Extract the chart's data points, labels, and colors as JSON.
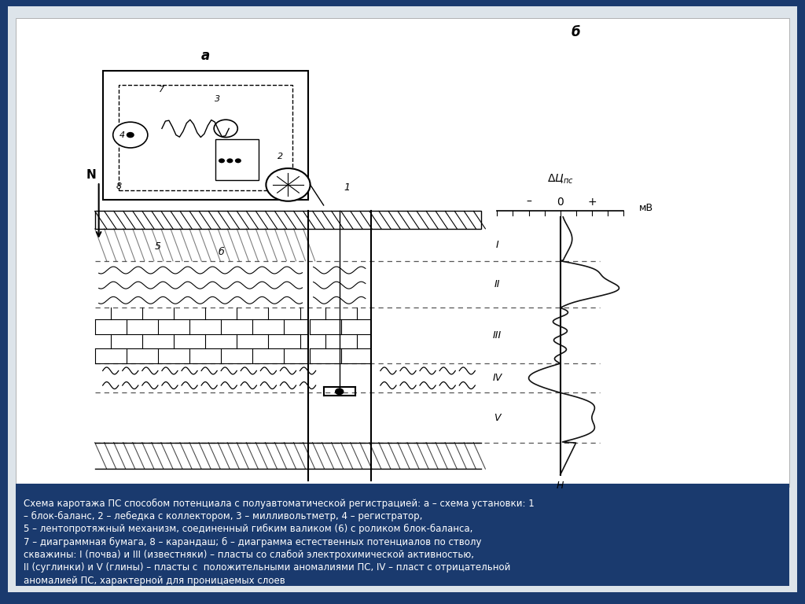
{
  "background_color": "#1a3a6e",
  "panel_color": "#e8e8e8",
  "panel_bg": "#f0f0f0",
  "title_text": [
    "Схема каротажа ПС способом потенциала с полуавтоматической регистрацией: а – схема установки: 1",
    "– блок-баланс, 2 – лебедка с коллектором, 3 – милливольтметр, 4 – регистратор,",
    "5 – лентопротяжный механизм, соединенный гибким валиком (6) с роликом блок-баланса,",
    "7 – диаграммная бумага, 8 – карандаш; б – диаграмма естественных потенциалов по стволу",
    "скважины: I (почва) и III (известняки) – пласты со слабой электрохимической активностью,",
    "II (суглинки) и V (глины) – пласты с  положительными аномалиями ПС, IV – пласт с отрицательной",
    "аномалией ПС, характерной для проницаемых слоев"
  ],
  "label_a": "а",
  "label_b": "б",
  "label_delta": "ΔЦпс",
  "label_mv": "мВ",
  "label_minus": "–",
  "label_zero": "0",
  "label_plus": "+",
  "label_N": "N",
  "label_H": "H",
  "label_5": "5",
  "label_6": "б",
  "roman_labels": [
    "I",
    "II",
    "III",
    "IV",
    "V"
  ],
  "dashed_line_color": "#333333",
  "curve_color": "#111111",
  "diagram_line_color": "#111111"
}
